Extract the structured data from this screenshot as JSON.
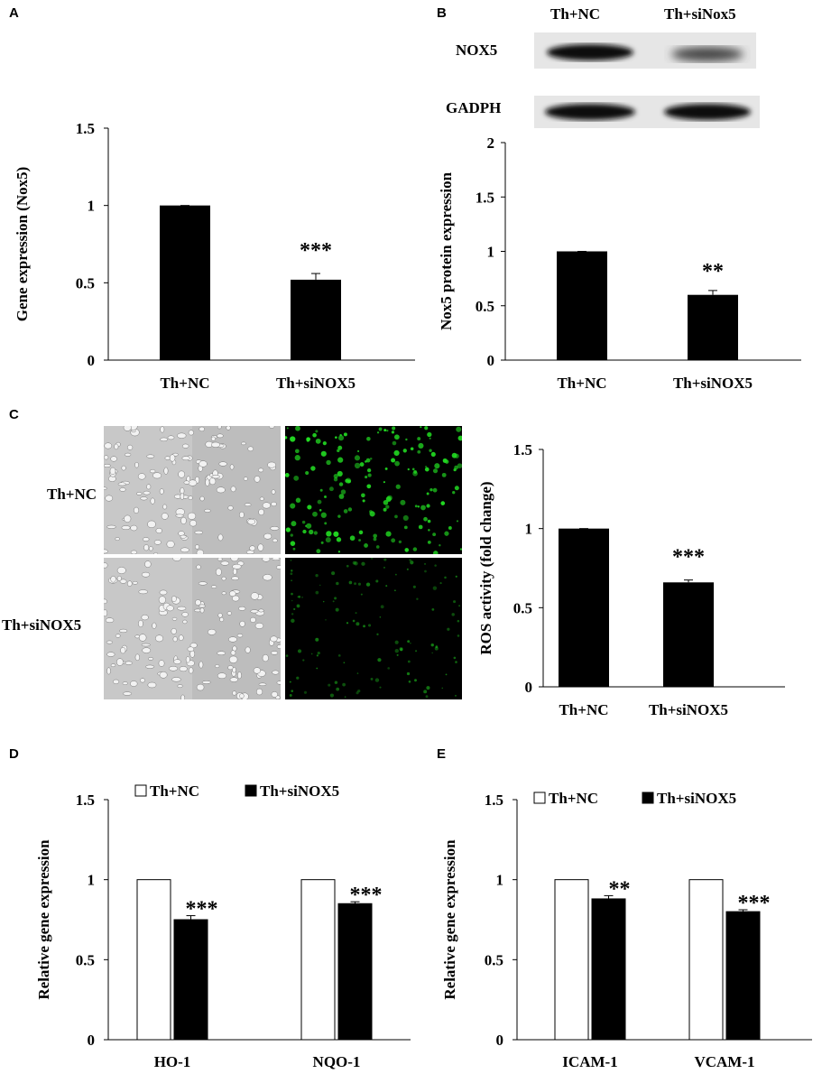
{
  "panels": {
    "A": "A",
    "B": "B",
    "C": "C",
    "D": "D",
    "E": "E"
  },
  "blot": {
    "col_labels": [
      "Th+NC",
      "Th+siNox5"
    ],
    "row_labels": [
      "NOX5",
      "GADPH"
    ],
    "band_intensity": {
      "NOX5": [
        0.9,
        0.25
      ],
      "GADPH": [
        0.95,
        0.95
      ]
    }
  },
  "micrographs": {
    "row_labels": [
      "Th+NC",
      "Th+siNOX5"
    ],
    "fluorescence_color": "#22dd22",
    "brightfield_color": "#b8b8b8"
  },
  "chart_data": [
    {
      "id": "A",
      "type": "bar",
      "categories": [
        "Th+NC",
        "Th+siNOX5"
      ],
      "values": [
        1.0,
        0.52
      ],
      "errors": [
        0.0,
        0.04
      ],
      "annotations": [
        "",
        "***"
      ],
      "ylabel": "Gene expression (Nox5)",
      "ylim": [
        0,
        1.5
      ],
      "yticks": [
        "0",
        "0.5",
        "1",
        "1.5"
      ],
      "bar_color": "#000000"
    },
    {
      "id": "B",
      "type": "bar",
      "categories": [
        "Th+NC",
        "Th+siNOX5"
      ],
      "values": [
        1.0,
        0.6
      ],
      "errors": [
        0.0,
        0.04
      ],
      "annotations": [
        "",
        "**"
      ],
      "ylabel": "Nox5 protein expression",
      "ylim": [
        0,
        2
      ],
      "yticks": [
        "0",
        "0.5",
        "1",
        "1.5",
        "2"
      ],
      "bar_color": "#000000"
    },
    {
      "id": "C",
      "type": "bar",
      "categories": [
        "Th+NC",
        "Th+siNOX5"
      ],
      "values": [
        1.0,
        0.66
      ],
      "errors": [
        0.0,
        0.015
      ],
      "annotations": [
        "",
        "***"
      ],
      "ylabel": "ROS activity (fold change)",
      "ylim": [
        0,
        1.5
      ],
      "yticks": [
        "0",
        "0.5",
        "1",
        "1.5"
      ],
      "bar_color": "#000000"
    },
    {
      "id": "D",
      "type": "bar",
      "categories": [
        "HO-1",
        "NQO-1"
      ],
      "series": [
        {
          "name": "Th+NC",
          "values": [
            1.0,
            1.0
          ],
          "errors": [
            0,
            0
          ],
          "color": "#ffffff"
        },
        {
          "name": "Th+siNOX5",
          "values": [
            0.75,
            0.85
          ],
          "errors": [
            0.025,
            0.012
          ],
          "color": "#000000"
        }
      ],
      "annotations": [
        "***",
        "***"
      ],
      "ylabel": "Relative gene expression",
      "ylim": [
        0,
        1.5
      ],
      "yticks": [
        "0",
        "0.5",
        "1",
        "1.5"
      ],
      "legend": "top"
    },
    {
      "id": "E",
      "type": "bar",
      "categories": [
        "ICAM-1",
        "VCAM-1"
      ],
      "series": [
        {
          "name": "Th+NC",
          "values": [
            1.0,
            1.0
          ],
          "errors": [
            0,
            0
          ],
          "color": "#ffffff"
        },
        {
          "name": "Th+siNOX5",
          "values": [
            0.88,
            0.8
          ],
          "errors": [
            0.02,
            0.012
          ],
          "color": "#000000"
        }
      ],
      "annotations": [
        "**",
        "***"
      ],
      "ylabel": "Relative gene expression",
      "ylim": [
        0,
        1.5
      ],
      "yticks": [
        "0",
        "0.5",
        "1",
        "1.5"
      ],
      "legend": "top"
    }
  ]
}
